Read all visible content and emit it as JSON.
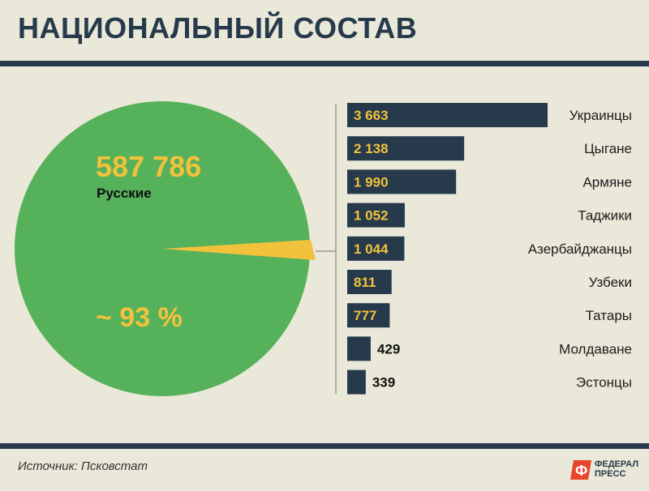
{
  "header": {
    "title": "НАЦИОНАЛЬНЫЙ СОСТАВ"
  },
  "chart_data": {
    "type": "pie",
    "main_slice": {
      "label": "Русские",
      "value_text": "587 786",
      "share_text": "~ 93 %",
      "color": "#55b15a"
    },
    "highlight_color": "#f2c23c",
    "breakdown": {
      "type": "bar",
      "orientation": "horizontal",
      "categories": [
        "Украинцы",
        "Цыгане",
        "Армяне",
        "Таджики",
        "Азербайджанцы",
        "Узбеки",
        "Татары",
        "Молдаване",
        "Эстонцы"
      ],
      "values": [
        3663,
        2138,
        1990,
        1052,
        1044,
        811,
        777,
        429,
        339
      ],
      "value_labels": [
        "3 663",
        "2 138",
        "1 990",
        "1 052",
        "1 044",
        "811",
        "777",
        "429",
        "339"
      ],
      "bar_color": "#263a4c",
      "label_color": "#f2c23c"
    }
  },
  "footer": {
    "source": "Источник: Псковстат",
    "logo_line1": "ФЕДЕРАЛ",
    "logo_line2": "ПРЕСС"
  }
}
